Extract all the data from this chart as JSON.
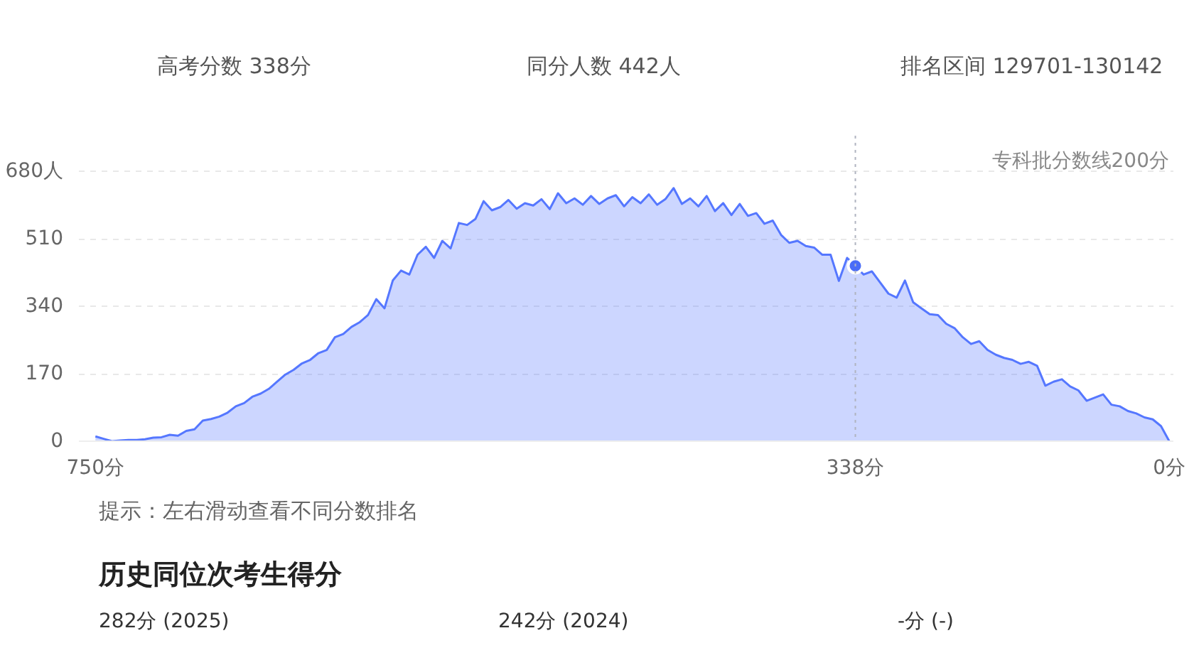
{
  "chart_data": {
    "type": "area",
    "categories": [
      "750分",
      null,
      null,
      null,
      null,
      null,
      null,
      null,
      null,
      null,
      null,
      null,
      null,
      null,
      null,
      null,
      null,
      null,
      null,
      null,
      null,
      null,
      null,
      null,
      null,
      null,
      null,
      null,
      null,
      null,
      null,
      null,
      null,
      null,
      null,
      null,
      null,
      null,
      null,
      null,
      null,
      null,
      null,
      null,
      null,
      null,
      null,
      null,
      null,
      null,
      null,
      null,
      null,
      null,
      null,
      null,
      null,
      null,
      null,
      null,
      null,
      null,
      null,
      null,
      null,
      null,
      null,
      null,
      null,
      null,
      null,
      null,
      null,
      null,
      null,
      null,
      null,
      null,
      null,
      null,
      null,
      null,
      null,
      null,
      null,
      null,
      null,
      null,
      null,
      null,
      null,
      null,
      "338分",
      null,
      null,
      null,
      null,
      null,
      null,
      null,
      null,
      null,
      null,
      null,
      null,
      null,
      null,
      null,
      null,
      null,
      null,
      null,
      null,
      null,
      null,
      null,
      null,
      null,
      null,
      null,
      null,
      null,
      null,
      null,
      null,
      null,
      null,
      null,
      null,
      null,
      "0分"
    ],
    "series": [
      {
        "color": "#5577ff",
        "values": [
          12,
          6,
          0,
          2,
          3,
          3,
          5,
          9,
          10,
          16,
          14,
          26,
          30,
          52,
          56,
          62,
          72,
          88,
          96,
          112,
          120,
          132,
          150,
          168,
          180,
          196,
          205,
          222,
          230,
          262,
          270,
          288,
          300,
          318,
          358,
          335,
          405,
          430,
          420,
          470,
          490,
          462,
          505,
          486,
          550,
          545,
          560,
          605,
          582,
          590,
          608,
          586,
          600,
          594,
          610,
          585,
          625,
          600,
          612,
          596,
          618,
          598,
          612,
          620,
          592,
          615,
          600,
          622,
          596,
          610,
          638,
          598,
          612,
          592,
          618,
          580,
          600,
          570,
          598,
          568,
          575,
          548,
          556,
          520,
          500,
          505,
          492,
          488,
          470,
          470,
          404,
          462,
          442,
          420,
          428,
          400,
          372,
          362,
          405,
          350,
          335,
          320,
          318,
          296,
          285,
          262,
          245,
          252,
          230,
          218,
          210,
          205,
          195,
          200,
          190,
          140,
          150,
          156,
          138,
          128,
          102,
          110,
          118,
          92,
          88,
          76,
          70,
          60,
          55,
          38,
          0
        ]
      },
      {
        "type": "scatter",
        "color": "#4a6cf7",
        "marker": "circle",
        "x": [
          "338分"
        ],
        "values": [
          442
        ]
      }
    ],
    "ylim": [
      0,
      770
    ],
    "yticks": [
      0,
      170,
      340,
      510,
      {
        "value": 680,
        "label": "680人"
      }
    ],
    "grid": "y",
    "ref_lines": [
      {
        "axis": "x",
        "value": "338分",
        "color": "#b0b4c0",
        "line_style": "dotted"
      }
    ],
    "annotations": [
      "高考分数 338分",
      "同分人数 442人",
      "排名区间 129701-130142",
      "专科批分数线200分",
      "提示：左右滑动查看不同分数排名",
      "历史同位次考生得分",
      "282分 (2025)",
      "242分 (2024)",
      "-分 (-)"
    ]
  }
}
